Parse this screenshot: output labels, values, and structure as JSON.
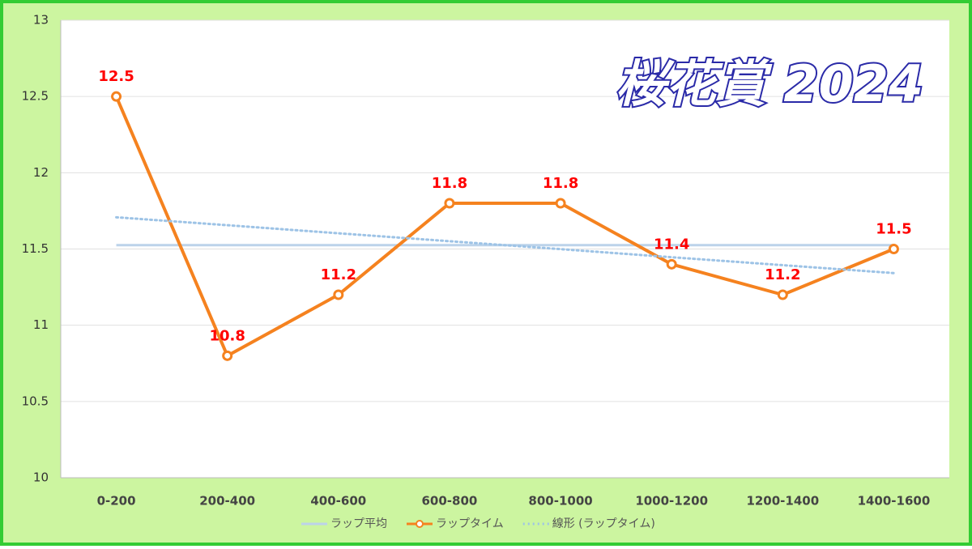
{
  "chart_data": {
    "type": "line",
    "title": "桜花賞 2024",
    "categories": [
      "0-200",
      "200-400",
      "400-600",
      "600-800",
      "800-1000",
      "1000-1200",
      "1200-1400",
      "1400-1600"
    ],
    "series": [
      {
        "name": "ラップ平均",
        "color": "#bcd3ea",
        "style": "solid",
        "markers": false,
        "data_labels": false,
        "values": [
          11.525,
          11.525,
          11.525,
          11.525,
          11.525,
          11.525,
          11.525,
          11.525
        ]
      },
      {
        "name": "ラップタイム",
        "color": "#f5821f",
        "style": "solid",
        "markers": true,
        "data_labels": true,
        "values": [
          12.5,
          10.8,
          11.2,
          11.8,
          11.8,
          11.4,
          11.2,
          11.5
        ]
      },
      {
        "name": "線形 (ラップタイム)",
        "color": "#9dc3e6",
        "style": "dotted",
        "markers": false,
        "data_labels": false,
        "values": [
          11.708,
          11.656,
          11.603,
          11.551,
          11.499,
          11.446,
          11.394,
          11.342
        ]
      }
    ],
    "ylim": [
      10,
      13
    ],
    "yticks": [
      10,
      10.5,
      11,
      11.5,
      12,
      12.5,
      13
    ],
    "grid": true,
    "legend": "bottom"
  }
}
